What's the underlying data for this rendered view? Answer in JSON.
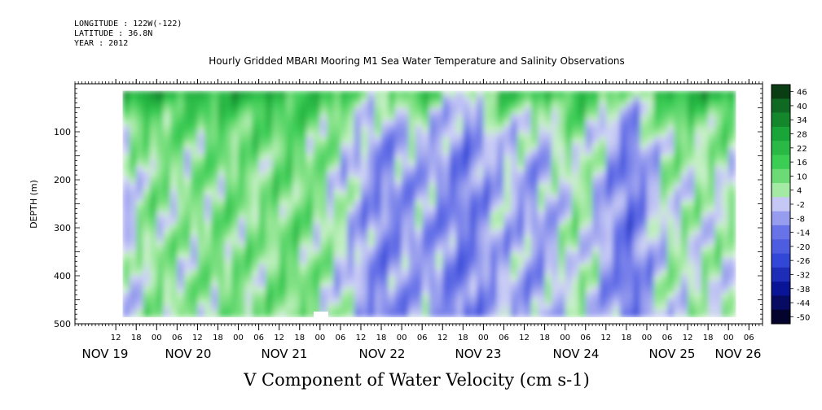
{
  "header": {
    "longitude": "LONGITUDE : 122W(-122)",
    "latitude": "LATITUDE : 36.8N",
    "year": "YEAR : 2012",
    "title": "Hourly Gridded MBARI Mooring M1 Sea Water Temperature and Salinity Observations"
  },
  "caption": "V Component of Water Velocity (cm s-1)",
  "chart_data": {
    "type": "heatmap",
    "title": "Hourly Gridded MBARI Mooring M1 Sea Water Temperature and Salinity Observations",
    "xlabel": "",
    "ylabel": "DEPTH (m)",
    "variable": "V Component of Water Velocity (cm s-1)",
    "x_range_hours": [
      0,
      202
    ],
    "data_x_range_hours": [
      14,
      194
    ],
    "x_hour_ticks": [
      12,
      18,
      "00",
      "06",
      12,
      18,
      "00",
      "06",
      12,
      18,
      "00",
      "06",
      12,
      18,
      "00",
      "06",
      12,
      18,
      "00",
      "06",
      12,
      18,
      "00",
      "06",
      12,
      18,
      "00",
      "06",
      12,
      18,
      "00",
      "06"
    ],
    "x_day_labels": [
      "NOV 19",
      "NOV 20",
      "NOV 21",
      "NOV 22",
      "NOV 23",
      "NOV 24",
      "NOV 25",
      "NOV 26"
    ],
    "y_ticks": [
      100,
      200,
      300,
      400,
      500
    ],
    "y_range": [
      0,
      500
    ],
    "y_reversed": true,
    "data_depth_range": [
      15,
      485
    ],
    "colorbar": {
      "levels": [
        46,
        40,
        34,
        28,
        22,
        16,
        10,
        4,
        -2,
        -8,
        -14,
        -20,
        -26,
        -32,
        -38,
        -44,
        -50
      ],
      "max_color": "#0a3d14",
      "min_color": "#03032e",
      "zero_color": "#f2f2f2"
    },
    "column_profile": [
      {
        "time": "NOV 19 14:00",
        "near_surface": 30,
        "interior": -4
      },
      {
        "time": "NOV 19 22:00",
        "near_surface": 28,
        "interior": 6
      },
      {
        "time": "NOV 20 08:00",
        "near_surface": 26,
        "interior": 4
      },
      {
        "time": "NOV 20 20:00",
        "near_surface": 24,
        "interior": 8
      },
      {
        "time": "NOV 21 06:00",
        "near_surface": 28,
        "interior": 6
      },
      {
        "time": "NOV 21 16:00",
        "near_surface": 22,
        "interior": 10
      },
      {
        "time": "NOV 22 02:00",
        "near_surface": 20,
        "interior": 4
      },
      {
        "time": "NOV 22 18:00",
        "near_surface": 8,
        "interior": -12
      },
      {
        "time": "NOV 23 06:00",
        "near_surface": 20,
        "interior": -6
      },
      {
        "time": "NOV 23 19:00",
        "near_surface": 0,
        "interior": -14
      },
      {
        "time": "NOV 24 06:00",
        "near_surface": 22,
        "interior": -4
      },
      {
        "time": "NOV 24 16:00",
        "near_surface": 18,
        "interior": -8
      },
      {
        "time": "NOV 25 04:00",
        "near_surface": 24,
        "interior": 4
      },
      {
        "time": "NOV 25 19:00",
        "near_surface": 4,
        "interior": -16
      },
      {
        "time": "NOV 26 06:00",
        "near_surface": 26,
        "interior": 2
      }
    ]
  }
}
